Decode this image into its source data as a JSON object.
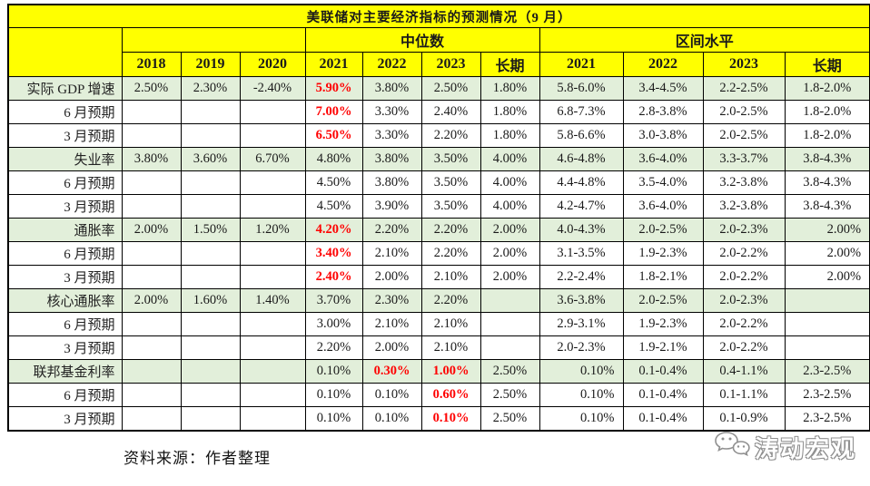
{
  "colors": {
    "header_bg": "#ffff00",
    "highlight_row_bg": "#e2efda",
    "title_text": "#ff0000",
    "red_value": "#ff0000",
    "border": "#000000",
    "watermark_gray": "#909090"
  },
  "chart_data": {
    "type": "table",
    "title": "美联储对主要经济指标的预测情况（9 月）",
    "group_headers": {
      "median": "中位数",
      "range": "区间水平"
    },
    "columns": [
      "2018",
      "2019",
      "2020",
      "2021",
      "2022",
      "2023",
      "长期",
      "2021",
      "2022",
      "2023",
      "长期"
    ],
    "rows": [
      {
        "label": "实际 GDP 增速",
        "highlight": true,
        "hist": [
          "2.50%",
          "2.30%",
          "-2.40%"
        ],
        "median": [
          {
            "t": "5.90%",
            "red": true
          },
          "3.80%",
          "2.50%",
          "1.80%"
        ],
        "range": [
          "5.8-6.0%",
          "3.4-4.5%",
          "2.2-2.5%",
          "1.8-2.0%"
        ]
      },
      {
        "label": "6 月预期",
        "highlight": false,
        "hist": [
          "",
          "",
          ""
        ],
        "median": [
          {
            "t": "7.00%",
            "red": true
          },
          "3.30%",
          "2.40%",
          "1.80%"
        ],
        "range": [
          "6.8-7.3%",
          "2.8-3.8%",
          "2.0-2.5%",
          "1.8-2.0%"
        ]
      },
      {
        "label": "3 月预期",
        "highlight": false,
        "hist": [
          "",
          "",
          ""
        ],
        "median": [
          {
            "t": "6.50%",
            "red": true
          },
          "3.30%",
          "2.20%",
          "1.80%"
        ],
        "range": [
          "5.8-6.6%",
          "3.0-3.8%",
          "2.0-2.5%",
          "1.8-2.0%"
        ]
      },
      {
        "label": "失业率",
        "highlight": true,
        "hist": [
          "3.80%",
          "3.60%",
          "6.70%"
        ],
        "median": [
          "4.80%",
          "3.80%",
          "3.50%",
          "4.00%"
        ],
        "range": [
          "4.6-4.8%",
          "3.6-4.0%",
          "3.3-3.7%",
          "3.8-4.3%"
        ]
      },
      {
        "label": "6 月预期",
        "highlight": false,
        "hist": [
          "",
          "",
          ""
        ],
        "median": [
          "4.50%",
          "3.80%",
          "3.50%",
          "4.00%"
        ],
        "range": [
          "4.4-4.8%",
          "3.5-4.0%",
          "3.2-3.8%",
          "3.8-4.3%"
        ]
      },
      {
        "label": "3 月预期",
        "highlight": false,
        "hist": [
          "",
          "",
          ""
        ],
        "median": [
          "4.50%",
          "3.90%",
          "3.50%",
          "4.00%"
        ],
        "range": [
          "4.2-4.7%",
          "3.6-4.0%",
          "3.2-3.8%",
          "3.8-4.3%"
        ]
      },
      {
        "label": "通胀率",
        "highlight": true,
        "hist": [
          "2.00%",
          "1.50%",
          "1.20%"
        ],
        "median": [
          {
            "t": "4.20%",
            "red": true
          },
          "2.20%",
          "2.20%",
          "2.00%"
        ],
        "range": [
          "4.0-4.3%",
          "2.0-2.5%",
          "2.0-2.3%",
          {
            "t": "2.00%",
            "right": true
          }
        ]
      },
      {
        "label": "6 月预期",
        "highlight": false,
        "hist": [
          "",
          "",
          ""
        ],
        "median": [
          {
            "t": "3.40%",
            "red": true
          },
          "2.10%",
          "2.20%",
          "2.00%"
        ],
        "range": [
          "3.1-3.5%",
          "1.9-2.3%",
          "2.0-2.2%",
          {
            "t": "2.00%",
            "right": true
          }
        ]
      },
      {
        "label": "3 月预期",
        "highlight": false,
        "hist": [
          "",
          "",
          ""
        ],
        "median": [
          {
            "t": "2.40%",
            "red": true
          },
          "2.00%",
          "2.10%",
          "2.00%"
        ],
        "range": [
          "2.2-2.4%",
          "1.8-2.1%",
          "2.0-2.2%",
          {
            "t": "2.00%",
            "right": true
          }
        ]
      },
      {
        "label": "核心通胀率",
        "highlight": true,
        "hist": [
          "2.00%",
          "1.60%",
          "1.40%"
        ],
        "median": [
          "3.70%",
          "2.30%",
          "2.20%",
          ""
        ],
        "range": [
          "3.6-3.8%",
          "2.0-2.5%",
          "2.0-2.3%",
          ""
        ]
      },
      {
        "label": "6 月预期",
        "highlight": false,
        "hist": [
          "",
          "",
          ""
        ],
        "median": [
          "3.00%",
          "2.10%",
          "2.10%",
          ""
        ],
        "range": [
          "2.9-3.1%",
          "1.9-2.3%",
          "2.0-2.2%",
          ""
        ]
      },
      {
        "label": "3 月预期",
        "highlight": false,
        "hist": [
          "",
          "",
          ""
        ],
        "median": [
          "2.20%",
          "2.00%",
          "2.10%",
          ""
        ],
        "range": [
          "2.0-2.3%",
          "1.9-2.1%",
          "2.0-2.2%",
          ""
        ]
      },
      {
        "label": "联邦基金利率",
        "highlight": true,
        "hist": [
          "",
          "",
          ""
        ],
        "median": [
          "0.10%",
          {
            "t": "0.30%",
            "red": true
          },
          {
            "t": "1.00%",
            "red": true
          },
          "2.50%"
        ],
        "range": [
          {
            "t": "0.10%",
            "right": true
          },
          "0.1-0.4%",
          "0.4-1.1%",
          "2.3-2.5%"
        ]
      },
      {
        "label": "6 月预期",
        "highlight": false,
        "hist": [
          "",
          "",
          ""
        ],
        "median": [
          "0.10%",
          "0.10%",
          {
            "t": "0.60%",
            "red": true
          },
          "2.50%"
        ],
        "range": [
          {
            "t": "0.10%",
            "right": true
          },
          "0.1-0.4%",
          "0.1-1.1%",
          "2.3-2.5%"
        ]
      },
      {
        "label": "3 月预期",
        "highlight": false,
        "hist": [
          "",
          "",
          ""
        ],
        "median": [
          "0.10%",
          "0.10%",
          {
            "t": "0.10%",
            "red": true
          },
          "2.50%"
        ],
        "range": [
          {
            "t": "0.10%",
            "right": true
          },
          "0.1-0.4%",
          "0.1-0.9%",
          "2.3-2.5%"
        ]
      }
    ]
  },
  "footer": {
    "source": "资料来源：作者整理"
  },
  "watermark": {
    "text": "涛动宏观",
    "icon": "wechat-bubbles-icon"
  }
}
